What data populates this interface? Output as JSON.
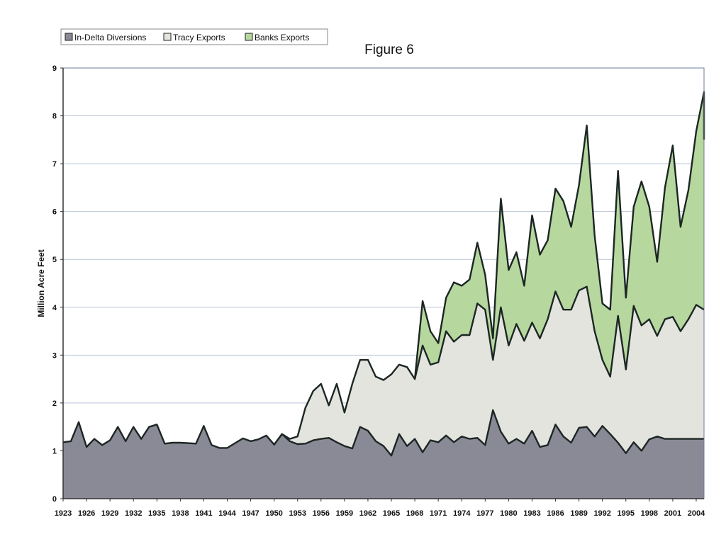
{
  "chart_data": {
    "type": "area",
    "stacked": true,
    "title": "Figure 6",
    "xlabel": "",
    "ylabel": "Million Acre Feet",
    "ylim": [
      0,
      9
    ],
    "yticks": [
      "0",
      "1",
      "2",
      "3",
      "4",
      "5",
      "6",
      "7",
      "8",
      "9"
    ],
    "xlim": [
      1923,
      2005
    ],
    "xticks": [
      "1923",
      "1926",
      "1929",
      "1932",
      "1935",
      "1938",
      "1941",
      "1944",
      "1947",
      "1950",
      "1953",
      "1956",
      "1959",
      "1962",
      "1965",
      "1968",
      "1971",
      "1974",
      "1977",
      "1980",
      "1983",
      "1986",
      "1989",
      "1992",
      "1995",
      "1998",
      "2001",
      "2004"
    ],
    "grid": true,
    "legend_position": "top-left",
    "series": [
      {
        "name": "In-Delta Diversions",
        "color": "#8a8a96",
        "points": [
          [
            1923,
            1.18
          ],
          [
            1924,
            1.2
          ],
          [
            1925,
            1.6
          ],
          [
            1926,
            1.08
          ],
          [
            1927,
            1.25
          ],
          [
            1928,
            1.12
          ],
          [
            1929,
            1.22
          ],
          [
            1930,
            1.5
          ],
          [
            1931,
            1.2
          ],
          [
            1932,
            1.5
          ],
          [
            1933,
            1.25
          ],
          [
            1934,
            1.5
          ],
          [
            1935,
            1.55
          ],
          [
            1936,
            1.15
          ],
          [
            1937,
            1.17
          ],
          [
            1938,
            1.17
          ],
          [
            1939,
            1.16
          ],
          [
            1940,
            1.15
          ],
          [
            1941,
            1.52
          ],
          [
            1942,
            1.12
          ],
          [
            1943,
            1.06
          ],
          [
            1944,
            1.06
          ],
          [
            1945,
            1.16
          ],
          [
            1946,
            1.26
          ],
          [
            1947,
            1.2
          ],
          [
            1948,
            1.24
          ],
          [
            1949,
            1.32
          ],
          [
            1950,
            1.13
          ],
          [
            1951,
            1.35
          ],
          [
            1952,
            1.2
          ],
          [
            1953,
            1.14
          ],
          [
            1954,
            1.15
          ],
          [
            1955,
            1.22
          ],
          [
            1956,
            1.25
          ],
          [
            1957,
            1.27
          ],
          [
            1958,
            1.18
          ],
          [
            1959,
            1.1
          ],
          [
            1960,
            1.05
          ],
          [
            1961,
            1.5
          ],
          [
            1962,
            1.42
          ],
          [
            1963,
            1.2
          ],
          [
            1964,
            1.1
          ],
          [
            1965,
            0.9
          ],
          [
            1966,
            1.35
          ],
          [
            1967,
            1.1
          ],
          [
            1968,
            1.25
          ],
          [
            1969,
            0.97
          ],
          [
            1970,
            1.22
          ],
          [
            1971,
            1.18
          ],
          [
            1972,
            1.32
          ],
          [
            1973,
            1.18
          ],
          [
            1974,
            1.3
          ],
          [
            1975,
            1.25
          ],
          [
            1976,
            1.27
          ],
          [
            1977,
            1.12
          ],
          [
            1978,
            1.85
          ],
          [
            1979,
            1.4
          ],
          [
            1980,
            1.15
          ],
          [
            1981,
            1.25
          ],
          [
            1982,
            1.15
          ],
          [
            1983,
            1.42
          ],
          [
            1984,
            1.08
          ],
          [
            1985,
            1.12
          ],
          [
            1986,
            1.55
          ],
          [
            1987,
            1.3
          ],
          [
            1988,
            1.17
          ],
          [
            1989,
            1.48
          ],
          [
            1990,
            1.5
          ],
          [
            1991,
            1.3
          ],
          [
            1992,
            1.52
          ],
          [
            1993,
            1.35
          ],
          [
            1994,
            1.17
          ],
          [
            1995,
            0.95
          ],
          [
            1996,
            1.18
          ],
          [
            1997,
            1.0
          ],
          [
            1998,
            1.24
          ],
          [
            1999,
            1.3
          ],
          [
            2000,
            1.25
          ],
          [
            2001,
            1.25
          ],
          [
            2002,
            1.25
          ],
          [
            2003,
            1.25
          ],
          [
            2004,
            1.25
          ],
          [
            2005,
            1.25
          ]
        ]
      },
      {
        "name": "Tracy Exports",
        "color": "#e3e4de",
        "points": [
          [
            1950,
            1.13
          ],
          [
            1951,
            1.35
          ],
          [
            1952,
            1.25
          ],
          [
            1953,
            1.3
          ],
          [
            1954,
            1.9
          ],
          [
            1955,
            2.25
          ],
          [
            1956,
            2.4
          ],
          [
            1957,
            1.95
          ],
          [
            1958,
            2.4
          ],
          [
            1959,
            1.8
          ],
          [
            1960,
            2.4
          ],
          [
            1961,
            2.9
          ],
          [
            1962,
            2.9
          ],
          [
            1963,
            2.55
          ],
          [
            1964,
            2.48
          ],
          [
            1965,
            2.6
          ],
          [
            1966,
            2.8
          ],
          [
            1967,
            2.75
          ],
          [
            1968,
            2.5
          ],
          [
            1969,
            3.2
          ],
          [
            1970,
            2.8
          ],
          [
            1971,
            2.85
          ],
          [
            1972,
            3.5
          ],
          [
            1973,
            3.28
          ],
          [
            1974,
            3.42
          ],
          [
            1975,
            3.42
          ],
          [
            1976,
            4.08
          ],
          [
            1977,
            3.95
          ],
          [
            1978,
            2.9
          ],
          [
            1979,
            4.0
          ],
          [
            1980,
            3.2
          ],
          [
            1981,
            3.65
          ],
          [
            1982,
            3.3
          ],
          [
            1983,
            3.68
          ],
          [
            1984,
            3.35
          ],
          [
            1985,
            3.75
          ],
          [
            1986,
            4.33
          ],
          [
            1987,
            3.95
          ],
          [
            1988,
            3.95
          ],
          [
            1989,
            4.35
          ],
          [
            1990,
            4.43
          ],
          [
            1991,
            3.5
          ],
          [
            1992,
            2.9
          ],
          [
            1993,
            2.55
          ],
          [
            1994,
            3.82
          ],
          [
            1995,
            2.7
          ],
          [
            1996,
            4.03
          ],
          [
            1997,
            3.62
          ],
          [
            1998,
            3.75
          ],
          [
            1999,
            3.4
          ],
          [
            2000,
            3.75
          ],
          [
            2001,
            3.8
          ],
          [
            2002,
            3.5
          ],
          [
            2003,
            3.75
          ],
          [
            2004,
            4.05
          ],
          [
            2005,
            3.95
          ]
        ]
      },
      {
        "name": "Banks Exports",
        "color": "#b6d79e",
        "points": [
          [
            1968,
            2.5
          ],
          [
            1969,
            4.13
          ],
          [
            1970,
            3.5
          ],
          [
            1971,
            3.25
          ],
          [
            1972,
            4.2
          ],
          [
            1973,
            4.52
          ],
          [
            1974,
            4.45
          ],
          [
            1975,
            4.58
          ],
          [
            1976,
            5.35
          ],
          [
            1977,
            4.68
          ],
          [
            1978,
            3.35
          ],
          [
            1979,
            6.27
          ],
          [
            1980,
            4.78
          ],
          [
            1981,
            5.15
          ],
          [
            1982,
            4.45
          ],
          [
            1983,
            5.92
          ],
          [
            1984,
            5.1
          ],
          [
            1985,
            5.4
          ],
          [
            1986,
            6.48
          ],
          [
            1987,
            6.22
          ],
          [
            1988,
            5.68
          ],
          [
            1989,
            6.55
          ],
          [
            1990,
            7.8
          ],
          [
            1991,
            5.5
          ],
          [
            1992,
            4.08
          ],
          [
            1993,
            3.95
          ],
          [
            1994,
            6.85
          ],
          [
            1995,
            4.2
          ],
          [
            1996,
            6.1
          ],
          [
            1997,
            6.63
          ],
          [
            1998,
            6.1
          ],
          [
            1999,
            4.95
          ],
          [
            2000,
            6.5
          ],
          [
            2001,
            7.38
          ],
          [
            2002,
            5.68
          ],
          [
            2003,
            6.45
          ],
          [
            2004,
            7.68
          ],
          [
            2005,
            8.5
          ],
          [
            2006,
            7.5
          ]
        ]
      }
    ]
  }
}
